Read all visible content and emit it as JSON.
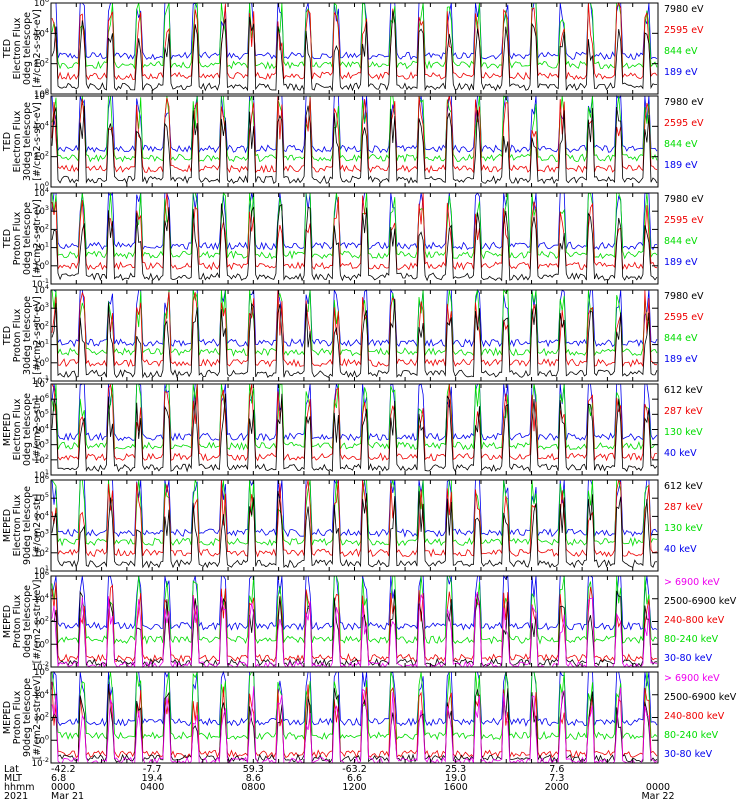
{
  "colors": {
    "blue": "#0000ee",
    "red": "#ee0000",
    "green": "#00dd00",
    "black": "#000000",
    "magenta": "#ee00ee"
  },
  "chart_data": [
    {
      "type": "line",
      "ylabel": [
        "TED",
        "Electron Flux",
        "0deg telescope",
        "[#/cm2-s-str-eV]"
      ],
      "yscale": "log",
      "ylim_exp": [
        0,
        6
      ],
      "ticks": [
        "10^6",
        "10^4",
        "10^2",
        "10^0"
      ],
      "series": [
        {
          "name": "7980 eV",
          "color": "#000000"
        },
        {
          "name": "2595 eV",
          "color": "#ee0000"
        },
        {
          "name": "844 eV",
          "color": "#00dd00"
        },
        {
          "name": "189 eV",
          "color": "#0000ee"
        }
      ]
    },
    {
      "type": "line",
      "ylabel": [
        "TED",
        "Electron Flux",
        "30deg telescope",
        "[#/cm2-s-str-eV]"
      ],
      "yscale": "log",
      "ylim_exp": [
        0,
        6
      ],
      "ticks": [
        "10^6",
        "10^4",
        "10^2",
        "10^0"
      ],
      "series": [
        {
          "name": "7980 eV",
          "color": "#000000"
        },
        {
          "name": "2595 eV",
          "color": "#ee0000"
        },
        {
          "name": "844 eV",
          "color": "#00dd00"
        },
        {
          "name": "189 eV",
          "color": "#0000ee"
        }
      ]
    },
    {
      "type": "line",
      "ylabel": [
        "TED",
        "Proton Flux",
        "0deg telescope",
        "[#/cm2-s-str-eV]"
      ],
      "yscale": "log",
      "ylim_exp": [
        -1,
        4
      ],
      "ticks": [
        "10^4",
        "10^3",
        "10^2",
        "10^1",
        "10^0",
        "10^-1"
      ],
      "series": [
        {
          "name": "7980 eV",
          "color": "#000000"
        },
        {
          "name": "2595 eV",
          "color": "#ee0000"
        },
        {
          "name": "844 eV",
          "color": "#00dd00"
        },
        {
          "name": "189 eV",
          "color": "#0000ee"
        }
      ]
    },
    {
      "type": "line",
      "ylabel": [
        "TED",
        "Proton Flux",
        "30deg telescope",
        "[#/cm2-s-str-eV]"
      ],
      "yscale": "log",
      "ylim_exp": [
        -1,
        4
      ],
      "ticks": [
        "10^4",
        "10^3",
        "10^2",
        "10^1",
        "10^0",
        "10^-1"
      ],
      "series": [
        {
          "name": "7980 eV",
          "color": "#000000"
        },
        {
          "name": "2595 eV",
          "color": "#ee0000"
        },
        {
          "name": "844 eV",
          "color": "#00dd00"
        },
        {
          "name": "189 eV",
          "color": "#0000ee"
        }
      ]
    },
    {
      "type": "line",
      "ylabel": [
        "MEPED",
        "Electron Flux",
        "0deg telescope",
        "[#/cm2-s-str]"
      ],
      "yscale": "log",
      "ylim_exp": [
        1,
        7
      ],
      "ticks": [
        "10^7",
        "10^6",
        "10^5",
        "10^4",
        "10^3",
        "10^2",
        "10^1"
      ],
      "series": [
        {
          "name": "612 keV",
          "color": "#000000"
        },
        {
          "name": "287 keV",
          "color": "#ee0000"
        },
        {
          "name": "130 keV",
          "color": "#00dd00"
        },
        {
          "name": "40 keV",
          "color": "#0000ee"
        }
      ]
    },
    {
      "type": "line",
      "ylabel": [
        "MEPED",
        "Electron Flux",
        "90deg telescope",
        "[#/cm2-s-str]"
      ],
      "yscale": "log",
      "ylim_exp": [
        1,
        6
      ],
      "ticks": [
        "10^6",
        "10^5",
        "10^4",
        "10^3",
        "10^2",
        "10^1"
      ],
      "series": [
        {
          "name": "612 keV",
          "color": "#000000"
        },
        {
          "name": "287 keV",
          "color": "#ee0000"
        },
        {
          "name": "130 keV",
          "color": "#00dd00"
        },
        {
          "name": "40 keV",
          "color": "#0000ee"
        }
      ]
    },
    {
      "type": "line",
      "ylabel": [
        "MEPED",
        "Proton Flux",
        "0deg telescope",
        "[#/cm2-s-str-keV]"
      ],
      "yscale": "log",
      "ylim_exp": [
        -2,
        6
      ],
      "ticks": [
        "10^6",
        "10^4",
        "10^2",
        "10^0",
        "10^-2"
      ],
      "series": [
        {
          "name": "> 6900 keV",
          "color": "#ee00ee"
        },
        {
          "name": "2500-6900 keV",
          "color": "#000000"
        },
        {
          "name": "240-800 keV",
          "color": "#ee0000"
        },
        {
          "name": "80-240 keV",
          "color": "#00dd00"
        },
        {
          "name": "30-80 keV",
          "color": "#0000ee"
        }
      ]
    },
    {
      "type": "line",
      "ylabel": [
        "MEPED",
        "Proton Flux",
        "90deg telescope",
        "[#/cm2-s-str-keV]"
      ],
      "yscale": "log",
      "ylim_exp": [
        -2,
        6
      ],
      "ticks": [
        "10^6",
        "10^4",
        "10^2",
        "10^0",
        "10^-2"
      ],
      "series": [
        {
          "name": "> 6900 keV",
          "color": "#ee00ee"
        },
        {
          "name": "2500-6900 keV",
          "color": "#000000"
        },
        {
          "name": "240-800 keV",
          "color": "#ee0000"
        },
        {
          "name": "80-240 keV",
          "color": "#00dd00"
        },
        {
          "name": "30-80 keV",
          "color": "#0000ee"
        }
      ]
    }
  ],
  "x_axis": {
    "row_labels": [
      "Lat",
      "MLT",
      "hhmm",
      "2021"
    ],
    "columns": [
      {
        "lat": "-42.2",
        "mlt": "6.8",
        "hhmm": "0000",
        "date": "Mar 21"
      },
      {
        "lat": "-7.7",
        "mlt": "19.4",
        "hhmm": "0400",
        "date": ""
      },
      {
        "lat": "59.3",
        "mlt": "8.6",
        "hhmm": "0800",
        "date": ""
      },
      {
        "lat": "-63.2",
        "mlt": "6.6",
        "hhmm": "1200",
        "date": ""
      },
      {
        "lat": "25.3",
        "mlt": "19.0",
        "hhmm": "1600",
        "date": ""
      },
      {
        "lat": "7.6",
        "mlt": "7.3",
        "hhmm": "2000",
        "date": ""
      },
      {
        "lat": "",
        "mlt": "",
        "hhmm": "0000",
        "date": "Mar 22"
      }
    ]
  }
}
